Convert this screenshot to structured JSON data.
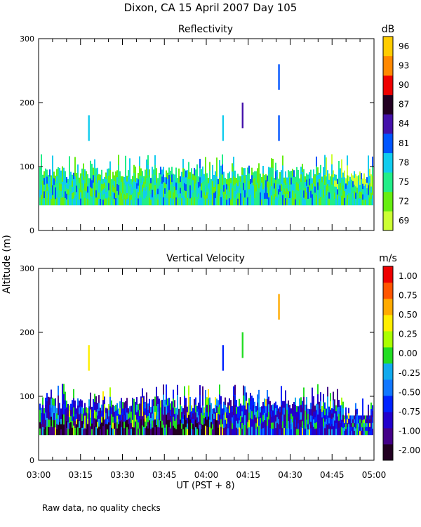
{
  "figure": {
    "title": "Dixon, CA 15 April 2007  Day 105",
    "ylabel": "Altitude (m)",
    "xlabel": "UT  (PST + 8)",
    "footnote": "Raw data, no quality checks"
  },
  "colors": {
    "reflectivity_scale": [
      "#ccff33",
      "#66ee11",
      "#22ee88",
      "#11ccee",
      "#0055ff",
      "#4411aa",
      "#220022",
      "#ee0000",
      "#ff8800",
      "#ffcc00"
    ],
    "velocity_scale": [
      "#220022",
      "#440088",
      "#2200cc",
      "#0022ff",
      "#1177ff",
      "#11aaee",
      "#22dd22",
      "#aaff00",
      "#ffee00",
      "#ffaa00",
      "#ff5500",
      "#ee0000"
    ]
  },
  "chart_data": [
    {
      "type": "heatmap",
      "title": "Reflectivity",
      "unit": "dB",
      "x_range": [
        "03:00",
        "05:00"
      ],
      "x_ticks": [
        "03:00",
        "03:15",
        "03:30",
        "03:45",
        "04:00",
        "04:15",
        "04:30",
        "04:45",
        "05:00"
      ],
      "ylim": [
        0,
        300
      ],
      "y_ticks": [
        0,
        100,
        200,
        300
      ],
      "colorbar_ticks": [
        "69",
        "72",
        "75",
        "78",
        "81",
        "84",
        "87",
        "90",
        "93",
        "96"
      ],
      "echo_base_m": 40,
      "echo_top_typical_m": [
        80,
        120
      ],
      "features": [
        {
          "time": "03:18",
          "top_m": 180,
          "value": "78"
        },
        {
          "time": "04:06",
          "top_m": 180,
          "value": "78"
        },
        {
          "time": "04:13",
          "top_m": 200,
          "value": "84"
        },
        {
          "time": "04:26",
          "top_m": 260,
          "value": "81"
        },
        {
          "time": "04:26",
          "top_m": 180,
          "value": "81"
        }
      ]
    },
    {
      "type": "heatmap",
      "title": "Vertical Velocity",
      "unit": "m/s",
      "x_range": [
        "03:00",
        "05:00"
      ],
      "x_ticks": [
        "03:00",
        "03:15",
        "03:30",
        "03:45",
        "04:00",
        "04:15",
        "04:30",
        "04:45",
        "05:00"
      ],
      "ylim": [
        0,
        300
      ],
      "y_ticks": [
        0,
        100,
        200,
        300
      ],
      "colorbar_ticks": [
        "-2.00",
        "-1.00",
        "-0.75",
        "-0.50",
        "-0.25",
        "0.00",
        "0.25",
        "0.50",
        "0.75",
        "1.00"
      ],
      "echo_base_m": 40,
      "echo_top_typical_m": [
        80,
        120
      ],
      "features": [
        {
          "time": "03:18",
          "top_m": 180,
          "value": "0.25"
        },
        {
          "time": "04:06",
          "top_m": 180,
          "value": "-1.00"
        },
        {
          "time": "04:13",
          "top_m": 200,
          "value": "-0.25"
        },
        {
          "time": "04:26",
          "top_m": 260,
          "value": "0.50"
        }
      ]
    }
  ]
}
